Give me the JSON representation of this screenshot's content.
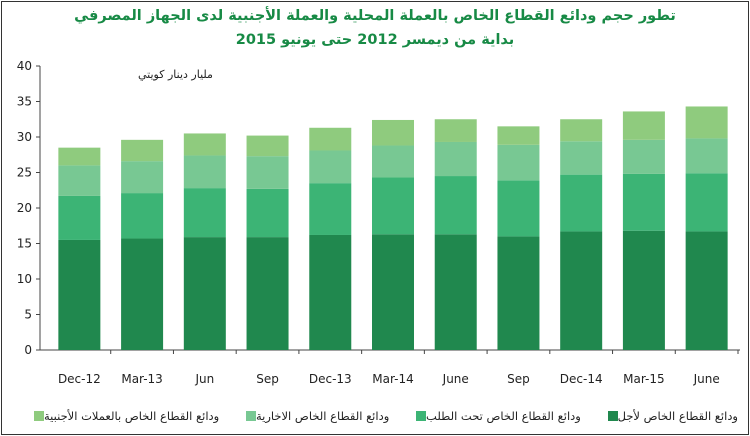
{
  "title_line1": "تطور حجم  ودائع القطاع الخاص بالعملة المحلية والعملة الأجنبية لدى الجهاز المصرفي",
  "title_line2": "بداية من ديمسر  2012 حتى يونيو  2015",
  "chart_data": {
    "type": "bar",
    "stacked": true,
    "ylabel": "مليار دينار كويتي",
    "ylim": [
      0,
      40
    ],
    "yticks": [
      0,
      5,
      10,
      15,
      20,
      25,
      30,
      35,
      40
    ],
    "grid": false,
    "legend_position": "bottom",
    "categories": [
      "Dec-12",
      "Mar-13",
      "Jun",
      "Sep",
      "Dec-13",
      "Mar-14",
      "June",
      "Sep",
      "Dec-14",
      "Mar-15",
      "June"
    ],
    "series": [
      {
        "name": "ودائع القطاع الخاص لأجل",
        "color": "#20884e",
        "values": [
          15.5,
          15.7,
          15.9,
          15.9,
          16.2,
          16.3,
          16.3,
          16.0,
          16.7,
          16.8,
          16.7
        ]
      },
      {
        "name": "ودائع  القطاع الخاص تحت الطلب",
        "color": "#3cb475",
        "values": [
          6.2,
          6.4,
          6.9,
          6.8,
          7.3,
          8.0,
          8.2,
          7.9,
          8.0,
          8.0,
          8.2
        ]
      },
      {
        "name": "ودائع القطاع الخاص الاخارية",
        "color": "#78c893",
        "values": [
          4.3,
          4.5,
          4.6,
          4.6,
          4.6,
          4.5,
          4.8,
          5.0,
          4.7,
          4.8,
          4.9
        ]
      },
      {
        "name": "ودائع  القطاع الخاص بالعملات الأجنبية",
        "color": "#8fcb7e",
        "values": [
          2.5,
          3.0,
          3.1,
          2.9,
          3.2,
          3.6,
          3.2,
          2.6,
          3.1,
          4.0,
          4.5
        ]
      }
    ]
  }
}
